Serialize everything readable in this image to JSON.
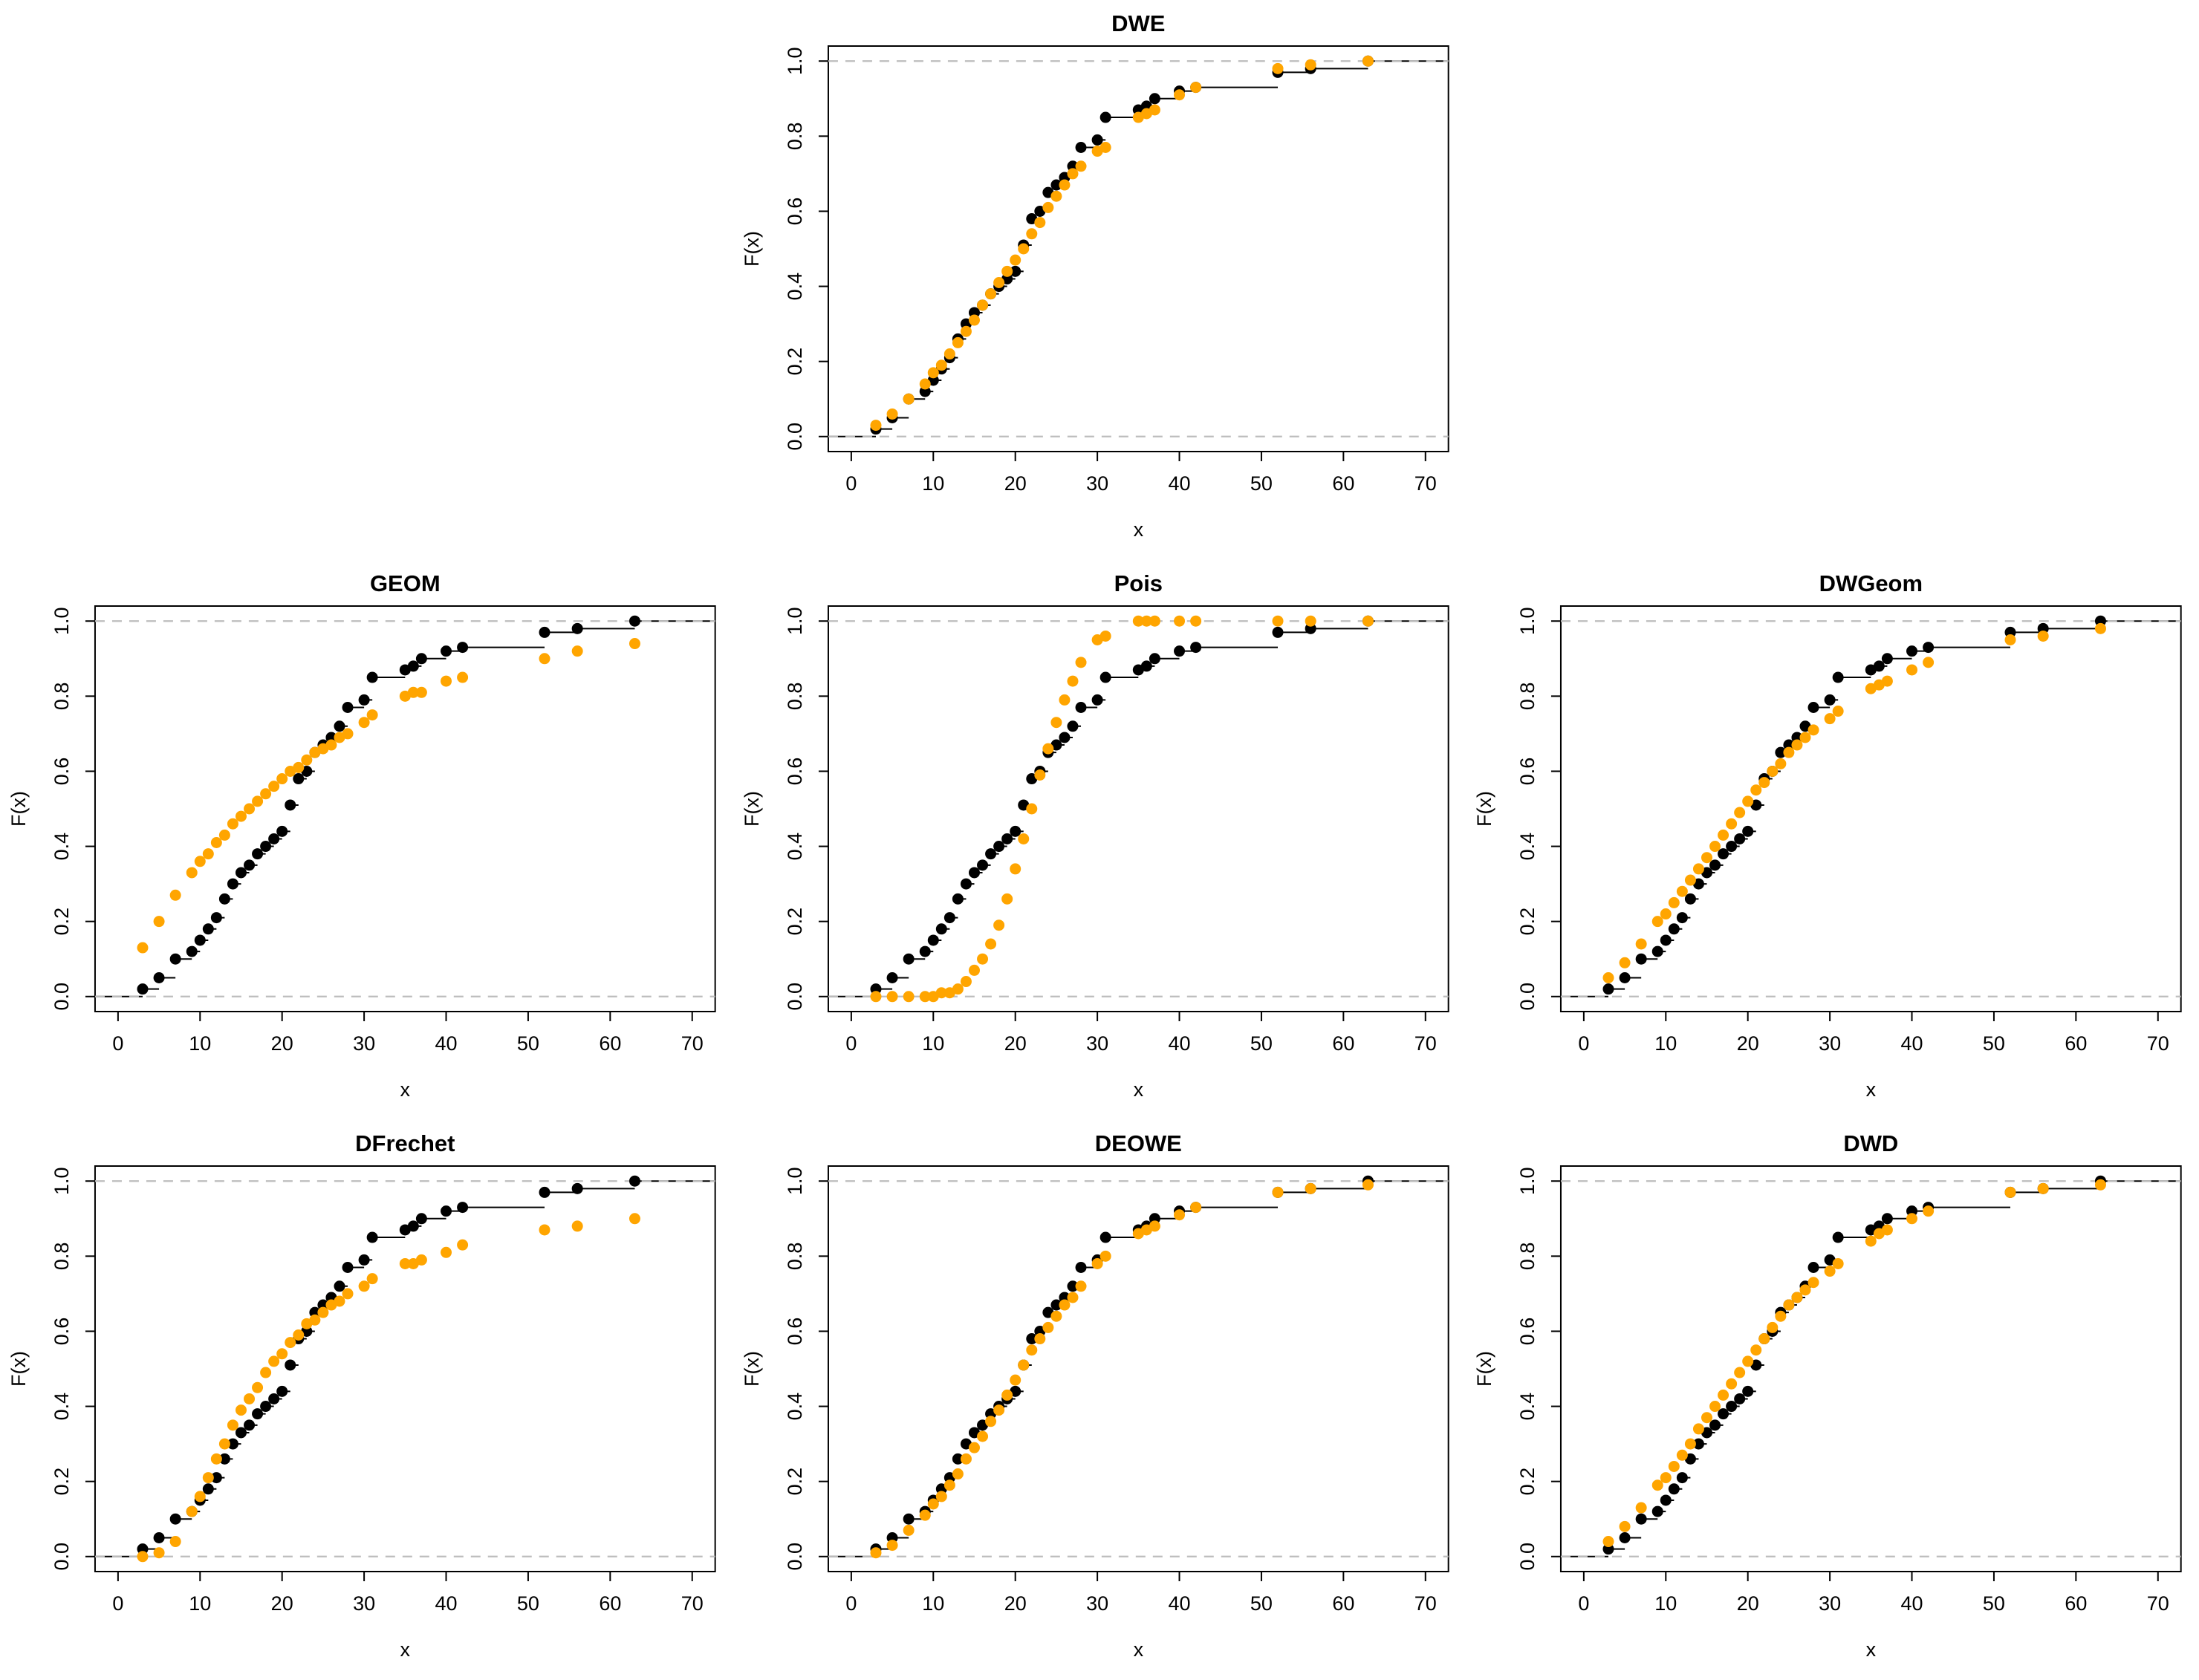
{
  "figure": {
    "background": "#ffffff",
    "grid_rows": 3,
    "grid_cols": 3
  },
  "style": {
    "empirical_color": "#000000",
    "fitted_color": "#FFA500",
    "reference_line_color": "#BDBDBD",
    "axis_color": "#000000",
    "title_color": "#000000"
  },
  "axes_defaults": {
    "xlabel": "x",
    "ylabel": "F(x)",
    "xticks": [
      0,
      10,
      20,
      30,
      40,
      50,
      60,
      70
    ],
    "yticks": [
      0.0,
      0.2,
      0.4,
      0.6,
      0.8,
      1.0
    ],
    "xlim": [
      0,
      70
    ],
    "ylim": [
      0,
      1
    ],
    "reference_lines_y": [
      0,
      1
    ]
  },
  "chart_data": [
    {
      "type": "scatter",
      "subtype": "ecdf-vs-fitted",
      "title": "DWE",
      "grid": {
        "row": 0,
        "col": 1
      },
      "xlabel": "x",
      "ylabel": "F(x)",
      "xlim": [
        0,
        70
      ],
      "ylim": [
        0,
        1
      ],
      "xticks": [
        0,
        10,
        20,
        30,
        40,
        50,
        60,
        70
      ],
      "yticks": [
        0.0,
        0.2,
        0.4,
        0.6,
        0.8,
        1.0
      ],
      "x": [
        3,
        5,
        7,
        9,
        10,
        11,
        12,
        13,
        14,
        15,
        16,
        17,
        18,
        19,
        20,
        21,
        22,
        23,
        24,
        25,
        26,
        27,
        28,
        30,
        31,
        35,
        36,
        37,
        40,
        42,
        52,
        56,
        63
      ],
      "series": [
        {
          "name": "empirical-ecdf",
          "color": "#000000",
          "values": [
            0.02,
            0.05,
            0.1,
            0.12,
            0.15,
            0.18,
            0.21,
            0.26,
            0.3,
            0.33,
            0.35,
            0.38,
            0.4,
            0.42,
            0.44,
            0.51,
            0.58,
            0.6,
            0.65,
            0.67,
            0.69,
            0.72,
            0.77,
            0.79,
            0.85,
            0.87,
            0.88,
            0.9,
            0.92,
            0.93,
            0.97,
            0.98,
            1.0
          ]
        },
        {
          "name": "fitted-cdf",
          "color": "#FFA500",
          "values": [
            0.03,
            0.06,
            0.1,
            0.14,
            0.17,
            0.19,
            0.22,
            0.25,
            0.28,
            0.31,
            0.35,
            0.38,
            0.41,
            0.44,
            0.47,
            0.5,
            0.54,
            0.57,
            0.61,
            0.64,
            0.67,
            0.7,
            0.72,
            0.76,
            0.77,
            0.85,
            0.86,
            0.87,
            0.91,
            0.93,
            0.98,
            0.99,
            1.0
          ]
        }
      ]
    },
    {
      "type": "scatter",
      "subtype": "ecdf-vs-fitted",
      "title": "GEOM",
      "grid": {
        "row": 1,
        "col": 0
      },
      "xlabel": "x",
      "ylabel": "F(x)",
      "xlim": [
        0,
        70
      ],
      "ylim": [
        0,
        1
      ],
      "xticks": [
        0,
        10,
        20,
        30,
        40,
        50,
        60,
        70
      ],
      "yticks": [
        0.0,
        0.2,
        0.4,
        0.6,
        0.8,
        1.0
      ],
      "x": [
        3,
        5,
        7,
        9,
        10,
        11,
        12,
        13,
        14,
        15,
        16,
        17,
        18,
        19,
        20,
        21,
        22,
        23,
        24,
        25,
        26,
        27,
        28,
        30,
        31,
        35,
        36,
        37,
        40,
        42,
        52,
        56,
        63
      ],
      "series": [
        {
          "name": "empirical-ecdf",
          "color": "#000000",
          "values": [
            0.02,
            0.05,
            0.1,
            0.12,
            0.15,
            0.18,
            0.21,
            0.26,
            0.3,
            0.33,
            0.35,
            0.38,
            0.4,
            0.42,
            0.44,
            0.51,
            0.58,
            0.6,
            0.65,
            0.67,
            0.69,
            0.72,
            0.77,
            0.79,
            0.85,
            0.87,
            0.88,
            0.9,
            0.92,
            0.93,
            0.97,
            0.98,
            1.0
          ]
        },
        {
          "name": "fitted-cdf",
          "color": "#FFA500",
          "values": [
            0.13,
            0.2,
            0.27,
            0.33,
            0.36,
            0.38,
            0.41,
            0.43,
            0.46,
            0.48,
            0.5,
            0.52,
            0.54,
            0.56,
            0.58,
            0.6,
            0.61,
            0.63,
            0.65,
            0.66,
            0.67,
            0.69,
            0.7,
            0.73,
            0.75,
            0.8,
            0.81,
            0.81,
            0.84,
            0.85,
            0.9,
            0.92,
            0.94
          ]
        }
      ]
    },
    {
      "type": "scatter",
      "subtype": "ecdf-vs-fitted",
      "title": "Pois",
      "grid": {
        "row": 1,
        "col": 1
      },
      "xlabel": "x",
      "ylabel": "F(x)",
      "xlim": [
        0,
        70
      ],
      "ylim": [
        0,
        1
      ],
      "xticks": [
        0,
        10,
        20,
        30,
        40,
        50,
        60,
        70
      ],
      "yticks": [
        0.0,
        0.2,
        0.4,
        0.6,
        0.8,
        1.0
      ],
      "x": [
        3,
        5,
        7,
        9,
        10,
        11,
        12,
        13,
        14,
        15,
        16,
        17,
        18,
        19,
        20,
        21,
        22,
        23,
        24,
        25,
        26,
        27,
        28,
        30,
        31,
        35,
        36,
        37,
        40,
        42,
        52,
        56,
        63
      ],
      "series": [
        {
          "name": "empirical-ecdf",
          "color": "#000000",
          "values": [
            0.02,
            0.05,
            0.1,
            0.12,
            0.15,
            0.18,
            0.21,
            0.26,
            0.3,
            0.33,
            0.35,
            0.38,
            0.4,
            0.42,
            0.44,
            0.51,
            0.58,
            0.6,
            0.65,
            0.67,
            0.69,
            0.72,
            0.77,
            0.79,
            0.85,
            0.87,
            0.88,
            0.9,
            0.92,
            0.93,
            0.97,
            0.98,
            1.0
          ]
        },
        {
          "name": "fitted-cdf",
          "color": "#FFA500",
          "values": [
            0.0,
            0.0,
            0.0,
            0.0,
            0.0,
            0.01,
            0.01,
            0.02,
            0.04,
            0.07,
            0.1,
            0.14,
            0.19,
            0.26,
            0.34,
            0.42,
            0.5,
            0.59,
            0.66,
            0.73,
            0.79,
            0.84,
            0.89,
            0.95,
            0.96,
            1.0,
            1.0,
            1.0,
            1.0,
            1.0,
            1.0,
            1.0,
            1.0
          ]
        }
      ]
    },
    {
      "type": "scatter",
      "subtype": "ecdf-vs-fitted",
      "title": "DWGeom",
      "grid": {
        "row": 1,
        "col": 2
      },
      "xlabel": "x",
      "ylabel": "F(x)",
      "xlim": [
        0,
        70
      ],
      "ylim": [
        0,
        1
      ],
      "xticks": [
        0,
        10,
        20,
        30,
        40,
        50,
        60,
        70
      ],
      "yticks": [
        0.0,
        0.2,
        0.4,
        0.6,
        0.8,
        1.0
      ],
      "x": [
        3,
        5,
        7,
        9,
        10,
        11,
        12,
        13,
        14,
        15,
        16,
        17,
        18,
        19,
        20,
        21,
        22,
        23,
        24,
        25,
        26,
        27,
        28,
        30,
        31,
        35,
        36,
        37,
        40,
        42,
        52,
        56,
        63
      ],
      "series": [
        {
          "name": "empirical-ecdf",
          "color": "#000000",
          "values": [
            0.02,
            0.05,
            0.1,
            0.12,
            0.15,
            0.18,
            0.21,
            0.26,
            0.3,
            0.33,
            0.35,
            0.38,
            0.4,
            0.42,
            0.44,
            0.51,
            0.58,
            0.6,
            0.65,
            0.67,
            0.69,
            0.72,
            0.77,
            0.79,
            0.85,
            0.87,
            0.88,
            0.9,
            0.92,
            0.93,
            0.97,
            0.98,
            1.0
          ]
        },
        {
          "name": "fitted-cdf",
          "color": "#FFA500",
          "values": [
            0.05,
            0.09,
            0.14,
            0.2,
            0.22,
            0.25,
            0.28,
            0.31,
            0.34,
            0.37,
            0.4,
            0.43,
            0.46,
            0.49,
            0.52,
            0.55,
            0.57,
            0.6,
            0.62,
            0.65,
            0.67,
            0.69,
            0.71,
            0.74,
            0.76,
            0.82,
            0.83,
            0.84,
            0.87,
            0.89,
            0.95,
            0.96,
            0.98
          ]
        }
      ]
    },
    {
      "type": "scatter",
      "subtype": "ecdf-vs-fitted",
      "title": "DFrechet",
      "grid": {
        "row": 2,
        "col": 0
      },
      "xlabel": "x",
      "ylabel": "F(x)",
      "xlim": [
        0,
        70
      ],
      "ylim": [
        0,
        1
      ],
      "xticks": [
        0,
        10,
        20,
        30,
        40,
        50,
        60,
        70
      ],
      "yticks": [
        0.0,
        0.2,
        0.4,
        0.6,
        0.8,
        1.0
      ],
      "x": [
        3,
        5,
        7,
        9,
        10,
        11,
        12,
        13,
        14,
        15,
        16,
        17,
        18,
        19,
        20,
        21,
        22,
        23,
        24,
        25,
        26,
        27,
        28,
        30,
        31,
        35,
        36,
        37,
        40,
        42,
        52,
        56,
        63
      ],
      "series": [
        {
          "name": "empirical-ecdf",
          "color": "#000000",
          "values": [
            0.02,
            0.05,
            0.1,
            0.12,
            0.15,
            0.18,
            0.21,
            0.26,
            0.3,
            0.33,
            0.35,
            0.38,
            0.4,
            0.42,
            0.44,
            0.51,
            0.58,
            0.6,
            0.65,
            0.67,
            0.69,
            0.72,
            0.77,
            0.79,
            0.85,
            0.87,
            0.88,
            0.9,
            0.92,
            0.93,
            0.97,
            0.98,
            1.0
          ]
        },
        {
          "name": "fitted-cdf",
          "color": "#FFA500",
          "values": [
            0.0,
            0.01,
            0.04,
            0.12,
            0.16,
            0.21,
            0.26,
            0.3,
            0.35,
            0.39,
            0.42,
            0.45,
            0.49,
            0.52,
            0.54,
            0.57,
            0.59,
            0.62,
            0.63,
            0.65,
            0.67,
            0.68,
            0.7,
            0.72,
            0.74,
            0.78,
            0.78,
            0.79,
            0.81,
            0.83,
            0.87,
            0.88,
            0.9
          ]
        }
      ]
    },
    {
      "type": "scatter",
      "subtype": "ecdf-vs-fitted",
      "title": "DEOWE",
      "grid": {
        "row": 2,
        "col": 1
      },
      "xlabel": "x",
      "ylabel": "F(x)",
      "xlim": [
        0,
        70
      ],
      "ylim": [
        0,
        1
      ],
      "xticks": [
        0,
        10,
        20,
        30,
        40,
        50,
        60,
        70
      ],
      "yticks": [
        0.0,
        0.2,
        0.4,
        0.6,
        0.8,
        1.0
      ],
      "x": [
        3,
        5,
        7,
        9,
        10,
        11,
        12,
        13,
        14,
        15,
        16,
        17,
        18,
        19,
        20,
        21,
        22,
        23,
        24,
        25,
        26,
        27,
        28,
        30,
        31,
        35,
        36,
        37,
        40,
        42,
        52,
        56,
        63
      ],
      "series": [
        {
          "name": "empirical-ecdf",
          "color": "#000000",
          "values": [
            0.02,
            0.05,
            0.1,
            0.12,
            0.15,
            0.18,
            0.21,
            0.26,
            0.3,
            0.33,
            0.35,
            0.38,
            0.4,
            0.42,
            0.44,
            0.51,
            0.58,
            0.6,
            0.65,
            0.67,
            0.69,
            0.72,
            0.77,
            0.79,
            0.85,
            0.87,
            0.88,
            0.9,
            0.92,
            0.93,
            0.97,
            0.98,
            1.0
          ]
        },
        {
          "name": "fitted-cdf",
          "color": "#FFA500",
          "values": [
            0.01,
            0.03,
            0.07,
            0.11,
            0.14,
            0.16,
            0.19,
            0.22,
            0.26,
            0.29,
            0.32,
            0.36,
            0.39,
            0.43,
            0.47,
            0.51,
            0.55,
            0.58,
            0.61,
            0.64,
            0.67,
            0.69,
            0.72,
            0.78,
            0.8,
            0.86,
            0.87,
            0.88,
            0.91,
            0.93,
            0.97,
            0.98,
            0.99
          ]
        }
      ]
    },
    {
      "type": "scatter",
      "subtype": "ecdf-vs-fitted",
      "title": "DWD",
      "grid": {
        "row": 2,
        "col": 2
      },
      "xlabel": "x",
      "ylabel": "F(x)",
      "xlim": [
        0,
        70
      ],
      "ylim": [
        0,
        1
      ],
      "xticks": [
        0,
        10,
        20,
        30,
        40,
        50,
        60,
        70
      ],
      "yticks": [
        0.0,
        0.2,
        0.4,
        0.6,
        0.8,
        1.0
      ],
      "x": [
        3,
        5,
        7,
        9,
        10,
        11,
        12,
        13,
        14,
        15,
        16,
        17,
        18,
        19,
        20,
        21,
        22,
        23,
        24,
        25,
        26,
        27,
        28,
        30,
        31,
        35,
        36,
        37,
        40,
        42,
        52,
        56,
        63
      ],
      "series": [
        {
          "name": "empirical-ecdf",
          "color": "#000000",
          "values": [
            0.02,
            0.05,
            0.1,
            0.12,
            0.15,
            0.18,
            0.21,
            0.26,
            0.3,
            0.33,
            0.35,
            0.38,
            0.4,
            0.42,
            0.44,
            0.51,
            0.58,
            0.6,
            0.65,
            0.67,
            0.69,
            0.72,
            0.77,
            0.79,
            0.85,
            0.87,
            0.88,
            0.9,
            0.92,
            0.93,
            0.97,
            0.98,
            1.0
          ]
        },
        {
          "name": "fitted-cdf",
          "color": "#FFA500",
          "values": [
            0.04,
            0.08,
            0.13,
            0.19,
            0.21,
            0.24,
            0.27,
            0.3,
            0.34,
            0.37,
            0.4,
            0.43,
            0.46,
            0.49,
            0.52,
            0.55,
            0.58,
            0.61,
            0.64,
            0.67,
            0.69,
            0.71,
            0.73,
            0.76,
            0.78,
            0.84,
            0.86,
            0.87,
            0.9,
            0.92,
            0.97,
            0.98,
            0.99
          ]
        }
      ]
    }
  ]
}
